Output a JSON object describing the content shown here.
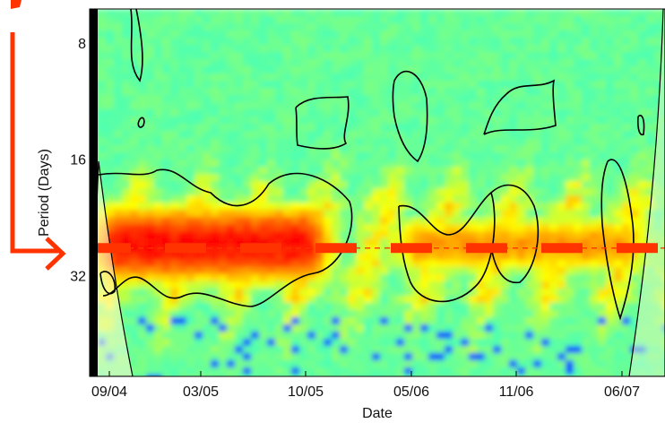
{
  "chart_data": {
    "type": "heatmap",
    "xlabel": "Date",
    "ylabel": "Period (Days)",
    "x_ticks": [
      "09/04",
      "03/05",
      "10/05",
      "05/06",
      "11/06",
      "06/07"
    ],
    "y_ticks": [
      "8",
      "16",
      "32"
    ],
    "y_scale": "log2",
    "ylim": [
      6.5,
      58
    ],
    "highlighted_period_days": 27,
    "colormap": "jet",
    "annotation_color": "#ff3300",
    "high_power_bands": [
      {
        "from": "09/04",
        "to": "10/05",
        "period_from_days": 20,
        "period_to_days": 35,
        "intensity": 0.92
      },
      {
        "from": "05/06",
        "to": "06/07",
        "period_from_days": 22,
        "period_to_days": 32,
        "intensity": 0.6
      }
    ]
  }
}
